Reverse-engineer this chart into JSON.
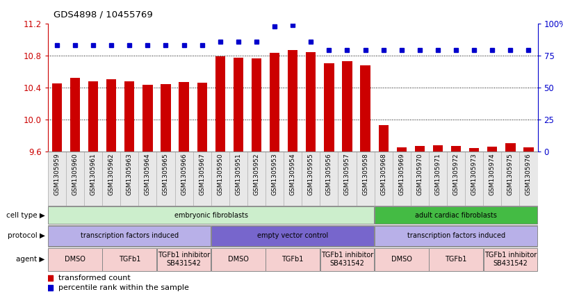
{
  "title": "GDS4898 / 10455769",
  "x_labels": [
    "GSM1305959",
    "GSM1305960",
    "GSM1305961",
    "GSM1305962",
    "GSM1305963",
    "GSM1305964",
    "GSM1305965",
    "GSM1305966",
    "GSM1305967",
    "GSM1305950",
    "GSM1305951",
    "GSM1305952",
    "GSM1305953",
    "GSM1305954",
    "GSM1305955",
    "GSM1305956",
    "GSM1305957",
    "GSM1305958",
    "GSM1305968",
    "GSM1305969",
    "GSM1305970",
    "GSM1305971",
    "GSM1305972",
    "GSM1305973",
    "GSM1305974",
    "GSM1305975",
    "GSM1305976"
  ],
  "bar_values": [
    10.45,
    10.52,
    10.48,
    10.5,
    10.48,
    10.43,
    10.44,
    10.47,
    10.46,
    10.79,
    10.77,
    10.76,
    10.83,
    10.87,
    10.84,
    10.7,
    10.73,
    10.68,
    9.93,
    9.65,
    9.67,
    9.68,
    9.67,
    9.64,
    9.66,
    9.7,
    9.65
  ],
  "percentile_values": [
    83,
    83,
    83,
    83,
    83,
    83,
    83,
    83,
    83,
    86,
    86,
    86,
    98,
    99,
    86,
    79,
    79,
    79,
    79,
    79,
    79,
    79,
    79,
    79,
    79,
    79,
    79
  ],
  "y_min": 9.6,
  "y_max": 11.2,
  "y_ticks": [
    9.6,
    10.0,
    10.4,
    10.8,
    11.2
  ],
  "y2_ticks": [
    0,
    25,
    50,
    75,
    100
  ],
  "bar_color": "#cc0000",
  "dot_color": "#0000cc",
  "bar_width": 0.55,
  "cell_type_groups": [
    {
      "label": "embryonic fibroblasts",
      "start": 0,
      "end": 17,
      "color": "#cceecc"
    },
    {
      "label": "adult cardiac fibroblasts",
      "start": 18,
      "end": 26,
      "color": "#44bb44"
    }
  ],
  "protocol_groups": [
    {
      "label": "transcription factors induced",
      "start": 0,
      "end": 8,
      "color": "#b8b0e8"
    },
    {
      "label": "empty vector control",
      "start": 9,
      "end": 17,
      "color": "#7766cc"
    },
    {
      "label": "transcription factors induced",
      "start": 18,
      "end": 26,
      "color": "#b8b0e8"
    }
  ],
  "agent_groups": [
    {
      "label": "DMSO",
      "start": 0,
      "end": 2,
      "color": "#f5d0d0"
    },
    {
      "label": "TGFb1",
      "start": 3,
      "end": 5,
      "color": "#f5d0d0"
    },
    {
      "label": "TGFb1 inhibitor\nSB431542",
      "start": 6,
      "end": 8,
      "color": "#f5d0d0"
    },
    {
      "label": "DMSO",
      "start": 9,
      "end": 11,
      "color": "#f5d0d0"
    },
    {
      "label": "TGFb1",
      "start": 12,
      "end": 14,
      "color": "#f5d0d0"
    },
    {
      "label": "TGFb1 inhibitor\nSB431542",
      "start": 15,
      "end": 17,
      "color": "#f5d0d0"
    },
    {
      "label": "DMSO",
      "start": 18,
      "end": 20,
      "color": "#f5d0d0"
    },
    {
      "label": "TGFb1",
      "start": 21,
      "end": 23,
      "color": "#f5d0d0"
    },
    {
      "label": "TGFb1 inhibitor\nSB431542",
      "start": 24,
      "end": 26,
      "color": "#f5d0d0"
    }
  ],
  "row_labels": [
    "cell type",
    "protocol",
    "agent"
  ],
  "legend_items": [
    {
      "label": "transformed count",
      "color": "#cc0000"
    },
    {
      "label": "percentile rank within the sample",
      "color": "#0000cc"
    }
  ],
  "bg_color": "#ffffff",
  "spine_color": "#888888",
  "grid_color": "#000000"
}
